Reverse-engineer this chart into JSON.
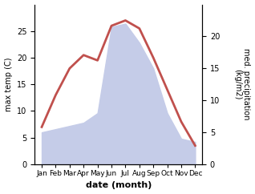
{
  "months": [
    "Jan",
    "Feb",
    "Mar",
    "Apr",
    "May",
    "Jun",
    "Jul",
    "Aug",
    "Sep",
    "Oct",
    "Nov",
    "Dec"
  ],
  "month_positions": [
    1,
    2,
    3,
    4,
    5,
    6,
    7,
    8,
    9,
    10,
    11,
    12
  ],
  "temperature": [
    7,
    13,
    18,
    20.5,
    19.5,
    26,
    27,
    25.5,
    20,
    14,
    8,
    3.5
  ],
  "precipitation": [
    5,
    5.5,
    6,
    6.5,
    8,
    21.5,
    22,
    19,
    15,
    8,
    4,
    3.5
  ],
  "temp_color": "#c0504d",
  "precip_fill_color": "#c5cce8",
  "precip_edge_color": "#a0acd4",
  "temp_ylim": [
    0,
    30
  ],
  "precip_ylim": [
    0,
    25
  ],
  "ylabel_left": "max temp (C)",
  "ylabel_right": "med. precipitation\n(kg/m2)",
  "xlabel": "date (month)",
  "temp_yticks": [
    0,
    5,
    10,
    15,
    20,
    25
  ],
  "precip_yticks": [
    0,
    5,
    10,
    15,
    20
  ],
  "line_width": 2.0,
  "figsize": [
    3.18,
    2.42
  ],
  "dpi": 100
}
